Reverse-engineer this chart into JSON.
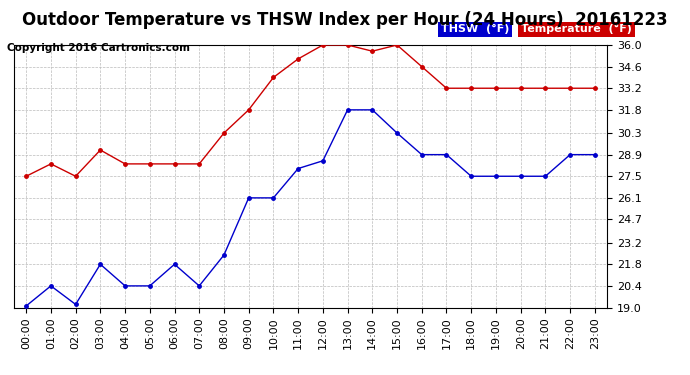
{
  "title": "Outdoor Temperature vs THSW Index per Hour (24 Hours)  20161223",
  "copyright": "Copyright 2016 Cartronics.com",
  "background_color": "#ffffff",
  "grid_color": "#bbbbbb",
  "ylim": [
    19.0,
    36.0
  ],
  "yticks": [
    19.0,
    20.4,
    21.8,
    23.2,
    24.7,
    26.1,
    27.5,
    28.9,
    30.3,
    31.8,
    33.2,
    34.6,
    36.0
  ],
  "hours": [
    "00:00",
    "01:00",
    "02:00",
    "03:00",
    "04:00",
    "05:00",
    "06:00",
    "07:00",
    "08:00",
    "09:00",
    "10:00",
    "11:00",
    "12:00",
    "13:00",
    "14:00",
    "15:00",
    "16:00",
    "17:00",
    "18:00",
    "19:00",
    "20:00",
    "21:00",
    "22:00",
    "23:00"
  ],
  "thsw": [
    19.1,
    20.4,
    19.2,
    21.8,
    20.4,
    20.4,
    21.8,
    20.4,
    22.4,
    26.1,
    26.1,
    28.0,
    28.5,
    31.8,
    31.8,
    30.3,
    28.9,
    28.9,
    27.5,
    27.5,
    27.5,
    27.5,
    28.9,
    28.9
  ],
  "temperature": [
    27.5,
    28.3,
    27.5,
    29.2,
    28.3,
    28.3,
    28.3,
    28.3,
    30.3,
    31.8,
    33.9,
    35.1,
    36.0,
    36.0,
    35.6,
    36.0,
    34.6,
    33.2,
    33.2,
    33.2,
    33.2,
    33.2,
    33.2,
    33.2
  ],
  "thsw_color": "#0000cc",
  "temp_color": "#cc0000",
  "legend_thsw_bg": "#0000cc",
  "legend_temp_bg": "#cc0000",
  "legend_text_color": "#ffffff",
  "title_fontsize": 12,
  "tick_fontsize": 8,
  "copyright_fontsize": 7.5
}
